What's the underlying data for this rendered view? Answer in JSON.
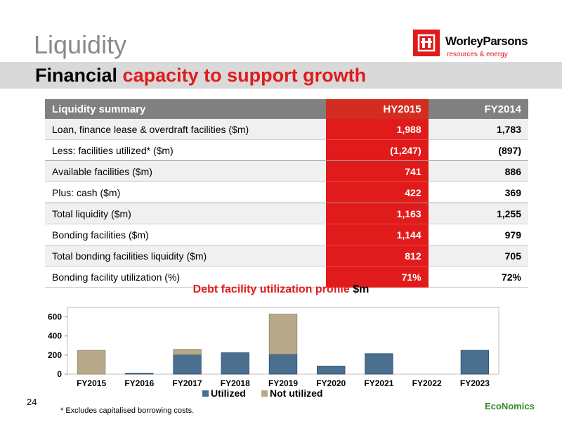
{
  "slide": {
    "title": "Liquidity",
    "subtitle_part1": "Financial ",
    "subtitle_part2": "capacity to support growth",
    "page_number": "24",
    "footnote": "* Excludes capitalised borrowing costs."
  },
  "logo": {
    "name": "WorleyParsons",
    "tagline": "resources & energy",
    "footer_logo": "EcoNomics"
  },
  "table": {
    "headers": [
      "Liquidity summary",
      "HY2015",
      "FY2014"
    ],
    "rows": [
      {
        "label": "Loan, finance lease & overdraft facilities ($m)",
        "hy2015": "1,988",
        "fy2014": "1,783"
      },
      {
        "label": "Less: facilities utilized* ($m)",
        "hy2015": "(1,247)",
        "fy2014": "(897)"
      },
      {
        "label": "Available facilities ($m)",
        "hy2015": "741",
        "fy2014": "886"
      },
      {
        "label": "Plus: cash ($m)",
        "hy2015": "422",
        "fy2014": "369"
      },
      {
        "label": "Total liquidity ($m)",
        "hy2015": "1,163",
        "fy2014": "1,255"
      },
      {
        "label": "Bonding facilities ($m)",
        "hy2015": "1,144",
        "fy2014": "979"
      },
      {
        "label": "Total bonding facilities liquidity ($m)",
        "hy2015": "812",
        "fy2014": "705"
      },
      {
        "label": "Bonding facility utilization (%)",
        "hy2015": "71%",
        "fy2014": "72%"
      }
    ]
  },
  "chart_data": {
    "type": "bar",
    "stacked": true,
    "title_part1": "Debt facility utilization profile ",
    "title_part2": "$m",
    "categories": [
      "FY2015",
      "FY2016",
      "FY2017",
      "FY2018",
      "FY2019",
      "FY2020",
      "FY2021",
      "FY2022",
      "FY2023"
    ],
    "series": [
      {
        "name": "Utilized",
        "color": "#4a6f8f",
        "values": [
          0,
          10,
          205,
          225,
          210,
          85,
          215,
          0,
          250
        ]
      },
      {
        "name": "Not utilized",
        "color": "#b8a98a",
        "values": [
          250,
          0,
          55,
          0,
          420,
          0,
          0,
          0,
          0
        ]
      }
    ],
    "yticks": [
      0,
      200,
      400,
      600
    ],
    "ylim": [
      0,
      700
    ],
    "legend": "bottom"
  }
}
